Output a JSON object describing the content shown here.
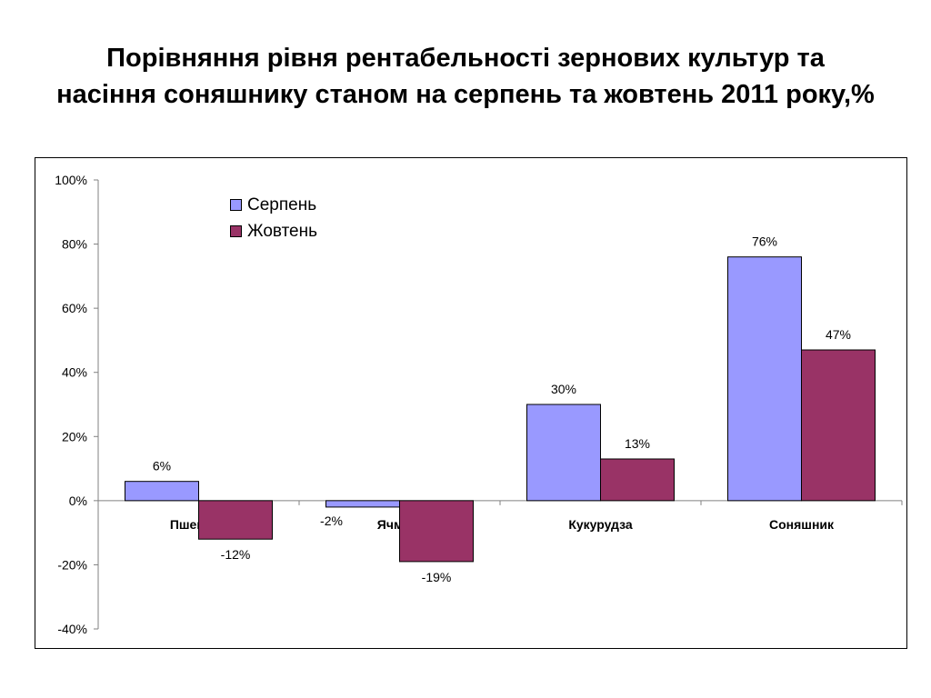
{
  "title": "Порівняння рівня рентабельності зернових культур та насіння соняшнику станом на серпень та жовтень 2011 року,%",
  "chart_data": {
    "type": "bar",
    "categories": [
      "Пшениця",
      "Ячмінь",
      "Кукурудза",
      "Соняшник"
    ],
    "series": [
      {
        "name": "Серпень",
        "color": "#9999ff",
        "values": [
          6,
          -2,
          30,
          76
        ],
        "labels": [
          "6%",
          "-2%",
          "30%",
          "76%"
        ]
      },
      {
        "name": "Жовтень",
        "color": "#993366",
        "values": [
          -12,
          -19,
          13,
          47
        ],
        "labels": [
          "-12%",
          "-19%",
          "13%",
          "47%"
        ]
      }
    ],
    "ylim": [
      -40,
      100
    ],
    "yticks": [
      100,
      80,
      60,
      40,
      20,
      0,
      -20,
      -40
    ],
    "ytick_labels": [
      "100%",
      "80%",
      "60%",
      "40%",
      "20%",
      "0%",
      "-20%",
      "-40%"
    ],
    "xlabel": "",
    "ylabel": "",
    "grid": false,
    "legend_position": "top-left"
  }
}
